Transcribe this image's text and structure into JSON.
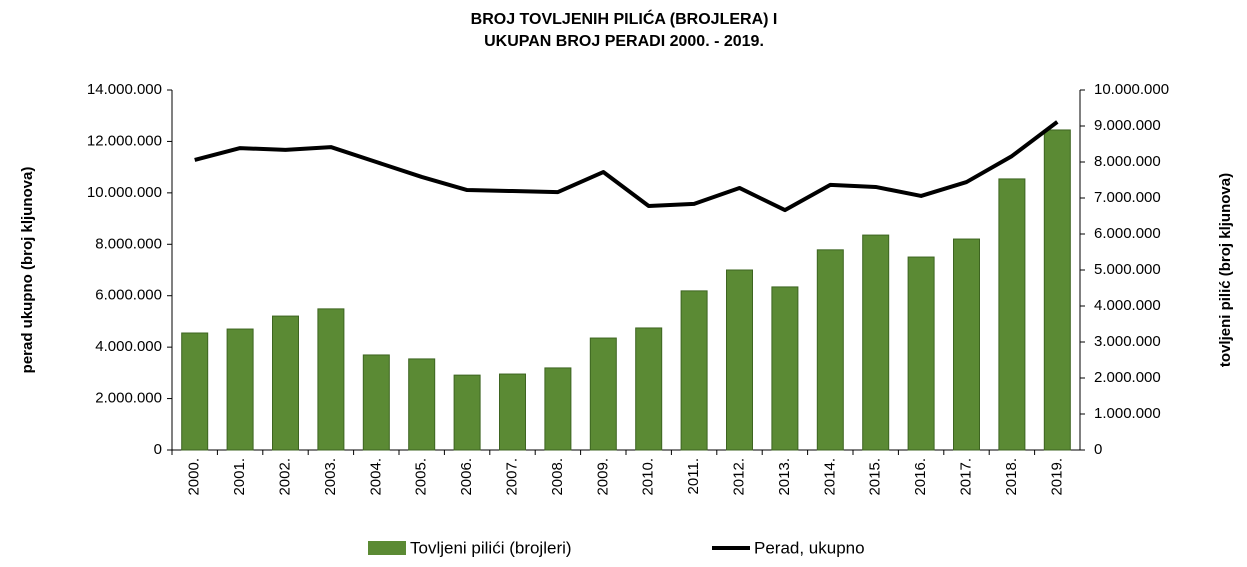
{
  "chart_data": {
    "type": "bar-line",
    "title": [
      "BROJ TOVLJENIH PILIĆA (BROJLERA) I",
      "UKUPAN BROJ PERADI 2000. - 2019."
    ],
    "ylabel": "perad ukupno (broj kljunova)",
    "y2label": "tovljeni pilić (broj kljunova)",
    "categories": [
      "2000.",
      "2001.",
      "2002.",
      "2003.",
      "2004.",
      "2005.",
      "2006.",
      "2007.",
      "2008.",
      "2009.",
      "2010.",
      "2011.",
      "2012.",
      "2013.",
      "2014.",
      "2015.",
      "2016.",
      "2017.",
      "2018.",
      "2019."
    ],
    "series": [
      {
        "name": "Tovljeni pilići (brojleri)",
        "type": "bar",
        "axis": "y2",
        "color": "#5b8a34",
        "values": [
          3250000,
          3360000,
          3720000,
          3920000,
          2640000,
          2530000,
          2080000,
          2110000,
          2280000,
          3110000,
          3390000,
          4420000,
          5000000,
          4530000,
          5560000,
          5970000,
          5360000,
          5860000,
          7530000,
          8890000
        ]
      },
      {
        "name": "Perad, ukupno",
        "type": "line",
        "axis": "y",
        "color": "#000000",
        "values": [
          11280000,
          11740000,
          11670000,
          11780000,
          11200000,
          10620000,
          10110000,
          10070000,
          10030000,
          10810000,
          9490000,
          9570000,
          10190000,
          9330000,
          10310000,
          10230000,
          9880000,
          10420000,
          11430000,
          12760000
        ]
      }
    ],
    "ylim": [
      0,
      14000000
    ],
    "yticks": [
      0,
      {
        "value": 2000000,
        "label": "2.000.000"
      },
      {
        "value": 4000000,
        "label": "4.000.000"
      },
      {
        "value": 6000000,
        "label": "6.000.000"
      },
      {
        "value": 8000000,
        "label": "8.000.000"
      },
      {
        "value": 10000000,
        "label": "10.000.000"
      },
      {
        "value": 12000000,
        "label": "12.000.000"
      },
      {
        "value": 14000000,
        "label": "14.000.000"
      }
    ],
    "y2lim": [
      0,
      10000000
    ],
    "y2ticks": [
      0,
      {
        "value": 1000000,
        "label": "1.000.000"
      },
      {
        "value": 2000000,
        "label": "2.000.000"
      },
      {
        "value": 3000000,
        "label": "3.000.000"
      },
      {
        "value": 4000000,
        "label": "4.000.000"
      },
      {
        "value": 5000000,
        "label": "5.000.000"
      },
      {
        "value": 6000000,
        "label": "6.000.000"
      },
      {
        "value": 7000000,
        "label": "7.000.000"
      },
      {
        "value": 8000000,
        "label": "8.000.000"
      },
      {
        "value": 9000000,
        "label": "9.000.000"
      },
      {
        "value": 10000000,
        "label": "10.000.000"
      }
    ],
    "grid": false,
    "legend": "bottom"
  }
}
